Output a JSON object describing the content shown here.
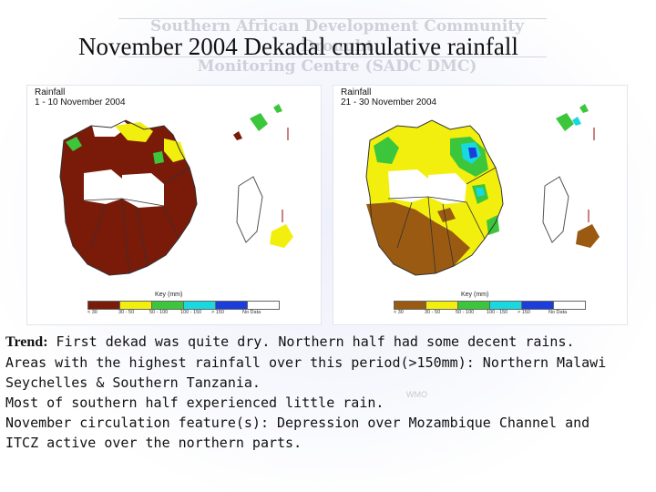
{
  "watermark": {
    "line1": "Southern African Development Community Drought",
    "line2": "Monitoring Centre (SADC DMC)",
    "wmo": "WMO"
  },
  "title": "November 2004 Dekadal cumulative rainfall",
  "maps": [
    {
      "label_line1": "Rainfall",
      "label_line2": "1 - 10 November 2004",
      "key_title": "Key (mm)",
      "key_classes": [
        "< 30",
        "30 - 50",
        "50 - 100",
        "100 - 150",
        "> 150",
        "No Data"
      ]
    },
    {
      "label_line1": "Rainfall",
      "label_line2": "21 - 30 November 2004",
      "key_title": "Key (mm)",
      "key_classes": [
        "< 30",
        "30 - 50",
        "50 - 100",
        "100 - 150",
        "> 150",
        "No Data"
      ]
    }
  ],
  "legend_colors": [
    "#7a1a08",
    "#f2ee0e",
    "#3cc63c",
    "#18d8e0",
    "#1b3ddb",
    "#ffffff"
  ],
  "caption": {
    "trend_label": "Trend:",
    "line1": " First dekad was quite dry. Northern  half had some  decent rains.",
    "line2": "Areas with the highest rainfall over this period(>150mm): Northern Malawi",
    "line3": "Seychelles & Southern Tanzania.",
    "line4": "Most of southern half  experienced little rain.",
    "line5": "November circulation feature(s): Depression over Mozambique  Channel and",
    "line6": "ITCZ  active over the northern parts."
  }
}
